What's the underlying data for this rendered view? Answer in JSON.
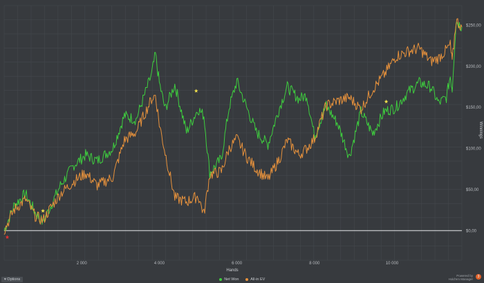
{
  "chart_data": {
    "type": "line",
    "xlabel": "Hands",
    "ylabel": "Winnings",
    "xlim": [
      0,
      11800
    ],
    "ylim": [
      -36,
      274
    ],
    "x_ticks": [
      2000,
      4000,
      6000,
      8000,
      10000
    ],
    "x_tick_labels": [
      "2 000",
      "4 000",
      "6 000",
      "8 000",
      "10 000"
    ],
    "y_ticks": [
      0,
      50,
      100,
      150,
      200,
      250
    ],
    "y_tick_labels": [
      "$0,00",
      "$50,00",
      "$100,00",
      "$150,00",
      "$200,00",
      "$250,00"
    ],
    "grid": true,
    "legend_position": "bottom-center",
    "series": [
      {
        "name": "Net Won",
        "color": "#3ecf3e",
        "x": [
          0,
          250,
          550,
          800,
          1000,
          1200,
          1450,
          1800,
          2100,
          2400,
          2800,
          3100,
          3400,
          3800,
          3900,
          4000,
          4150,
          4400,
          4700,
          5000,
          5150,
          5300,
          5600,
          5800,
          6000,
          6250,
          6500,
          6800,
          7100,
          7300,
          7600,
          7800,
          8000,
          8300,
          8600,
          8900,
          9200,
          9500,
          9800,
          10100,
          10400,
          10700,
          11000,
          11200,
          11400,
          11500,
          11550,
          11650,
          11800
        ],
        "y": [
          0,
          30,
          45,
          22,
          10,
          30,
          55,
          80,
          92,
          85,
          100,
          140,
          135,
          190,
          215,
          180,
          148,
          178,
          120,
          148,
          140,
          70,
          88,
          150,
          182,
          150,
          120,
          105,
          150,
          175,
          160,
          165,
          115,
          152,
          130,
          90,
          145,
          118,
          145,
          150,
          168,
          180,
          175,
          155,
          162,
          188,
          172,
          255,
          248
        ]
      },
      {
        "name": "All-in EV",
        "color": "#e8923c",
        "x": [
          0,
          250,
          550,
          800,
          1000,
          1200,
          1450,
          1800,
          2100,
          2400,
          2800,
          3100,
          3400,
          3800,
          3900,
          4000,
          4150,
          4400,
          4700,
          5000,
          5150,
          5300,
          5600,
          5800,
          6000,
          6250,
          6500,
          6800,
          7100,
          7300,
          7600,
          7800,
          8000,
          8300,
          8600,
          8900,
          9200,
          9500,
          9800,
          10100,
          10400,
          10700,
          11000,
          11200,
          11400,
          11500,
          11550,
          11650,
          11800
        ],
        "y": [
          0,
          25,
          38,
          18,
          12,
          28,
          45,
          60,
          70,
          55,
          65,
          110,
          120,
          160,
          165,
          130,
          95,
          40,
          35,
          42,
          20,
          68,
          72,
          100,
          112,
          90,
          75,
          62,
          88,
          110,
          92,
          100,
          112,
          152,
          158,
          162,
          148,
          172,
          190,
          212,
          218,
          222,
          206,
          210,
          220,
          226,
          205,
          256,
          248
        ]
      }
    ],
    "markers": [
      {
        "x": 1000,
        "y": 24,
        "color": "#f2e14c"
      },
      {
        "x": 4950,
        "y": 170,
        "color": "#f2e14c"
      },
      {
        "x": 9850,
        "y": 157,
        "color": "#f2e14c"
      },
      {
        "x": 80,
        "y": -8,
        "color": "#e03030"
      }
    ]
  },
  "ui": {
    "options_label": "Options",
    "brand_line1": "Powered by",
    "brand_line2": "Hold'em Manager",
    "brand_badge": "3"
  }
}
